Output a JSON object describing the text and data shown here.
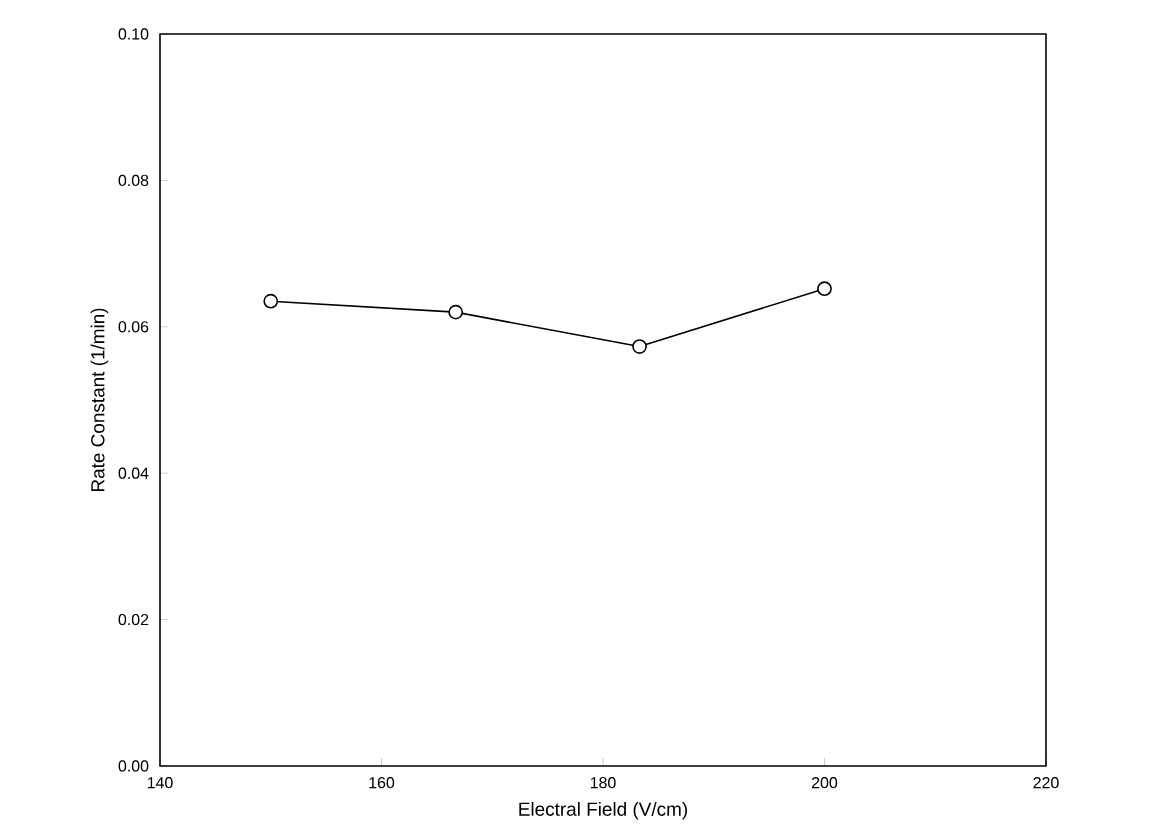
{
  "chart_data": {
    "type": "line",
    "xlabel": "Electral Field (V/cm)",
    "ylabel": "Rate Constant (1/min)",
    "x": [
      150,
      166.7,
      183.3,
      200
    ],
    "series": [
      {
        "color": "#000000",
        "values": [
          0.0635,
          0.062,
          0.0573,
          0.0652
        ]
      }
    ],
    "xlim": [
      140,
      220
    ],
    "xticks": [
      140,
      160,
      180,
      200,
      220
    ],
    "ylim": [
      0,
      0.1
    ],
    "yticks": [
      {
        "value": 0,
        "label": "0.00"
      },
      {
        "value": 0.02,
        "label": "0.02"
      },
      {
        "value": 0.04,
        "label": "0.04"
      },
      {
        "value": 0.06,
        "label": "0.06"
      },
      {
        "value": 0.08,
        "label": "0.08"
      },
      {
        "value": 0.1,
        "label": "0.10"
      }
    ],
    "marker": "circle",
    "line_style": "solid"
  }
}
